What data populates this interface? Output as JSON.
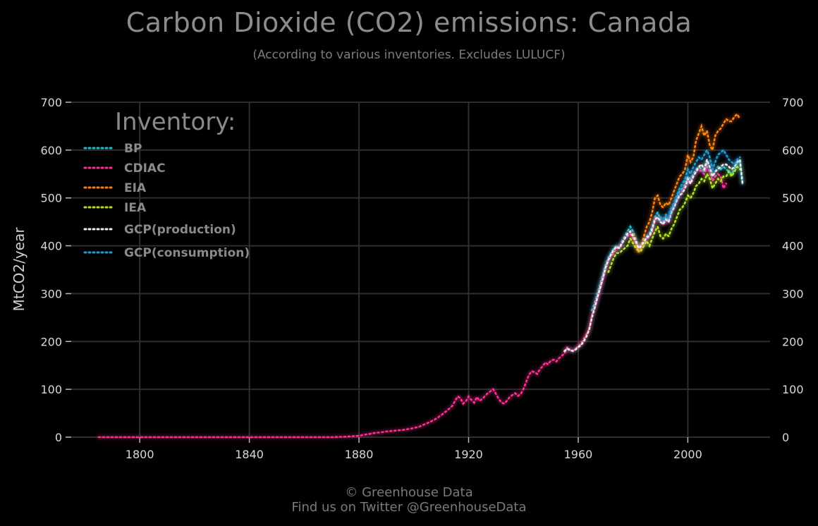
{
  "header": {
    "title": "Carbon Dioxide (CO2) emissions: Canada",
    "subtitle": "(According to various inventories. Excludes LULUCF)"
  },
  "footer": {
    "credit": "© Greenhouse Data",
    "social": "Find us on Twitter @GreenhouseData"
  },
  "chart_data": {
    "type": "line",
    "title": "Carbon Dioxide (CO2) emissions: Canada",
    "subtitle": "(According to various inventories. Excludes LULUCF)",
    "xlabel": "",
    "ylabel": "MtCO2/year",
    "xlim": [
      1775,
      2030
    ],
    "ylim": [
      0,
      700
    ],
    "x_ticks": [
      1800,
      1840,
      1880,
      1920,
      1960,
      2000
    ],
    "y_ticks": [
      0,
      100,
      200,
      300,
      400,
      500,
      600,
      700
    ],
    "grid": true,
    "legend_title": "Inventory:",
    "legend_position": "top-left",
    "line_style": "dotted",
    "series": [
      {
        "name": "BP",
        "color": "#17becf",
        "x": [
          1965,
          1966,
          1967,
          1968,
          1969,
          1970,
          1971,
          1972,
          1973,
          1974,
          1975,
          1976,
          1977,
          1978,
          1979,
          1980,
          1981,
          1982,
          1983,
          1984,
          1985,
          1986,
          1987,
          1988,
          1989,
          1990,
          1991,
          1992,
          1993,
          1994,
          1995,
          1996,
          1997,
          1998,
          1999,
          2000,
          2001,
          2002,
          2003,
          2004,
          2005,
          2006,
          2007,
          2008,
          2009,
          2010,
          2011,
          2012,
          2013,
          2014,
          2015,
          2016,
          2017,
          2018,
          2019,
          2020
        ],
        "y": [
          265,
          280,
          300,
          320,
          340,
          360,
          375,
          385,
          395,
          400,
          395,
          410,
          420,
          430,
          440,
          430,
          415,
          395,
          400,
          410,
          420,
          425,
          440,
          460,
          470,
          455,
          450,
          460,
          455,
          475,
          485,
          500,
          515,
          520,
          530,
          545,
          540,
          550,
          560,
          565,
          560,
          555,
          575,
          565,
          545,
          555,
          565,
          560,
          565,
          560,
          555,
          550,
          560,
          575,
          575,
          525
        ]
      },
      {
        "name": "CDIAC",
        "color": "#ff2d95",
        "x": [
          1785,
          1790,
          1800,
          1810,
          1820,
          1830,
          1840,
          1850,
          1860,
          1870,
          1875,
          1880,
          1882,
          1884,
          1886,
          1888,
          1890,
          1892,
          1894,
          1896,
          1898,
          1900,
          1902,
          1904,
          1906,
          1908,
          1910,
          1912,
          1913,
          1914,
          1915,
          1916,
          1917,
          1918,
          1919,
          1920,
          1921,
          1922,
          1923,
          1924,
          1925,
          1926,
          1927,
          1928,
          1929,
          1930,
          1931,
          1932,
          1933,
          1934,
          1935,
          1936,
          1937,
          1938,
          1939,
          1940,
          1941,
          1942,
          1943,
          1944,
          1945,
          1946,
          1947,
          1948,
          1949,
          1950,
          1951,
          1952,
          1953,
          1954,
          1955,
          1956,
          1957,
          1958,
          1959,
          1960,
          1961,
          1962,
          1963,
          1964,
          1965,
          1966,
          1967,
          1968,
          1969,
          1970,
          1971,
          1972,
          1973,
          1974,
          1975,
          1976,
          1977,
          1978,
          1979,
          1980,
          1981,
          1982,
          1983,
          1984,
          1985,
          1986,
          1987,
          1988,
          1989,
          1990,
          1991,
          1992,
          1993,
          1994,
          1995,
          1996,
          1997,
          1998,
          1999,
          2000,
          2001,
          2002,
          2003,
          2004,
          2005,
          2006,
          2007,
          2008,
          2009,
          2010,
          2011,
          2012,
          2013,
          2014
        ],
        "y": [
          0,
          0,
          0,
          0,
          0,
          0,
          0,
          0,
          0,
          0,
          1,
          3,
          5,
          7,
          9,
          10,
          12,
          13,
          14,
          15,
          17,
          19,
          22,
          27,
          32,
          38,
          46,
          55,
          60,
          65,
          75,
          85,
          82,
          70,
          75,
          85,
          78,
          72,
          84,
          76,
          80,
          86,
          92,
          96,
          100,
          90,
          80,
          72,
          70,
          76,
          84,
          88,
          92,
          86,
          90,
          100,
          115,
          130,
          138,
          136,
          132,
          142,
          148,
          156,
          152,
          160,
          162,
          158,
          165,
          170,
          175,
          188,
          182,
          180,
          185,
          190,
          195,
          205,
          215,
          225,
          255,
          270,
          290,
          310,
          330,
          350,
          368,
          378,
          385,
          395,
          395,
          405,
          415,
          420,
          425,
          415,
          405,
          390,
          395,
          405,
          415,
          418,
          430,
          455,
          460,
          450,
          445,
          455,
          450,
          470,
          480,
          495,
          505,
          515,
          525,
          540,
          530,
          545,
          555,
          560,
          555,
          550,
          565,
          555,
          535,
          545,
          550,
          545,
          520,
          530
        ]
      },
      {
        "name": "EIA",
        "color": "#ff7f0e",
        "x": [
          1980,
          1981,
          1982,
          1983,
          1984,
          1985,
          1986,
          1987,
          1988,
          1989,
          1990,
          1991,
          1992,
          1993,
          1994,
          1995,
          1996,
          1997,
          1998,
          1999,
          2000,
          2001,
          2002,
          2003,
          2004,
          2005,
          2006,
          2007,
          2008,
          2009,
          2010,
          2011,
          2012,
          2013,
          2014,
          2015,
          2016,
          2017,
          2018,
          2019
        ],
        "y": [
          425,
          410,
          385,
          400,
          420,
          440,
          450,
          470,
          500,
          505,
          485,
          480,
          490,
          485,
          500,
          515,
          530,
          545,
          550,
          560,
          590,
          575,
          585,
          620,
          635,
          650,
          630,
          640,
          610,
          600,
          630,
          640,
          645,
          655,
          665,
          660,
          660,
          670,
          675,
          665
        ]
      },
      {
        "name": "IEA",
        "color": "#b0e020",
        "x": [
          1971,
          1972,
          1973,
          1974,
          1975,
          1976,
          1977,
          1978,
          1979,
          1980,
          1981,
          1982,
          1983,
          1984,
          1985,
          1986,
          1987,
          1988,
          1989,
          1990,
          1991,
          1992,
          1993,
          1994,
          1995,
          1996,
          1997,
          1998,
          1999,
          2000,
          2001,
          2002,
          2003,
          2004,
          2005,
          2006,
          2007,
          2008,
          2009,
          2010,
          2011,
          2012,
          2013,
          2014,
          2015,
          2016,
          2017,
          2018,
          2019
        ],
        "y": [
          345,
          360,
          375,
          385,
          385,
          390,
          395,
          400,
          415,
          405,
          395,
          390,
          390,
          400,
          410,
          400,
          415,
          430,
          440,
          420,
          415,
          425,
          420,
          435,
          445,
          460,
          475,
          480,
          490,
          505,
          500,
          510,
          525,
          530,
          540,
          535,
          550,
          540,
          520,
          530,
          540,
          535,
          545,
          545,
          555,
          545,
          555,
          565,
          560
        ]
      },
      {
        "name": "GCP(production)",
        "color": "#ececec",
        "x": [
          1955,
          1956,
          1957,
          1958,
          1959,
          1960,
          1961,
          1962,
          1963,
          1964,
          1965,
          1966,
          1967,
          1968,
          1969,
          1970,
          1971,
          1972,
          1973,
          1974,
          1975,
          1976,
          1977,
          1978,
          1979,
          1980,
          1981,
          1982,
          1983,
          1984,
          1985,
          1986,
          1987,
          1988,
          1989,
          1990,
          1991,
          1992,
          1993,
          1994,
          1995,
          1996,
          1997,
          1998,
          1999,
          2000,
          2001,
          2002,
          2003,
          2004,
          2005,
          2006,
          2007,
          2008,
          2009,
          2010,
          2011,
          2012,
          2013,
          2014,
          2015,
          2016,
          2017,
          2018,
          2019,
          2020
        ],
        "y": [
          180,
          185,
          182,
          180,
          183,
          188,
          192,
          200,
          210,
          225,
          250,
          270,
          292,
          312,
          332,
          355,
          370,
          382,
          392,
          398,
          395,
          405,
          415,
          425,
          430,
          420,
          410,
          395,
          400,
          408,
          418,
          420,
          435,
          455,
          460,
          450,
          445,
          455,
          450,
          470,
          480,
          495,
          505,
          510,
          520,
          540,
          530,
          545,
          555,
          565,
          570,
          560,
          580,
          565,
          545,
          555,
          560,
          565,
          570,
          570,
          565,
          560,
          565,
          575,
          580,
          530
        ]
      },
      {
        "name": "GCP(consumption)",
        "color": "#1f9bd6",
        "x": [
          1990,
          1991,
          1992,
          1993,
          1994,
          1995,
          1996,
          1997,
          1998,
          1999,
          2000,
          2001,
          2002,
          2003,
          2004,
          2005,
          2006,
          2007,
          2008,
          2009,
          2010,
          2011,
          2012,
          2013,
          2014,
          2015,
          2016,
          2017,
          2018,
          2019
        ],
        "y": [
          460,
          455,
          465,
          460,
          480,
          490,
          505,
          520,
          530,
          540,
          560,
          550,
          565,
          575,
          585,
          580,
          590,
          600,
          585,
          560,
          575,
          590,
          595,
          600,
          590,
          580,
          575,
          570,
          580,
          585
        ]
      }
    ]
  }
}
